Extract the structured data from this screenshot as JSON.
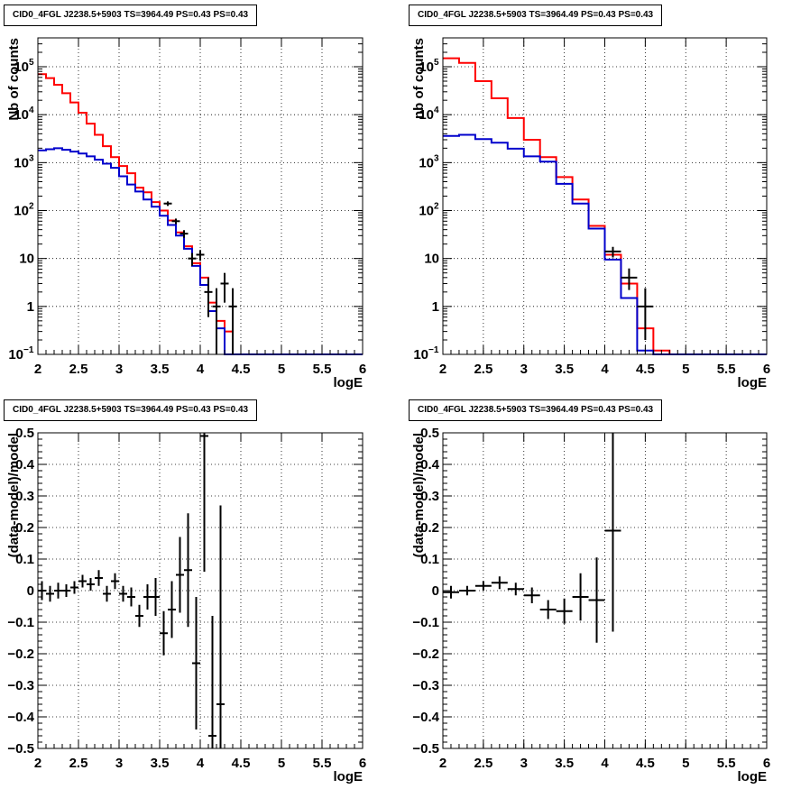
{
  "colors": {
    "data": "#000000",
    "model_total": "#ff0000",
    "model_component": "#0000cc",
    "grid": "#000000"
  },
  "chart_data": [
    {
      "type": "line",
      "title": "CID0_4FGL J2238.5+5903 TS=3964.49 PS=0.43 PS=0.43",
      "xlabel": "logE",
      "ylabel": "Nb of counts",
      "xlim": [
        2,
        6
      ],
      "ylim": [
        0.1,
        400000
      ],
      "log_y": true,
      "grid": true,
      "x_ticks": [
        "2",
        "2.5",
        "3",
        "3.5",
        "4",
        "4.5",
        "5",
        "5.5",
        "6"
      ],
      "y_ticks": [
        {
          "value": 0.1,
          "label": "10",
          "exp": "−1"
        },
        {
          "value": 1,
          "label": "1",
          "exp": ""
        },
        {
          "value": 10,
          "label": "10",
          "exp": ""
        },
        {
          "value": 100,
          "label": "10",
          "exp": "2"
        },
        {
          "value": 1000,
          "label": "10",
          "exp": "3"
        },
        {
          "value": 10000,
          "label": "10",
          "exp": "4"
        },
        {
          "value": 100000,
          "label": "10",
          "exp": "5"
        }
      ],
      "bin_edges": [
        2.0,
        2.1,
        2.2,
        2.3,
        2.4,
        2.5,
        2.6,
        2.7,
        2.8,
        2.9,
        3.0,
        3.1,
        3.2,
        3.3,
        3.4,
        3.5,
        3.6,
        3.7,
        3.8,
        3.9,
        4.0,
        4.1,
        4.2,
        4.3,
        4.4,
        4.5,
        4.6,
        4.7,
        4.8,
        4.9,
        5.0,
        5.1,
        5.2,
        5.3,
        5.4,
        5.5,
        5.6,
        5.7,
        5.8,
        5.9,
        6.0
      ],
      "series": [
        {
          "name": "model total",
          "color": "#ff0000",
          "values": [
            70000,
            58000,
            42000,
            28000,
            18000,
            11000,
            6500,
            3800,
            2200,
            1300,
            850,
            600,
            300,
            240,
            150,
            100,
            62,
            35,
            18,
            8,
            4,
            1.2,
            0.5,
            0.3,
            0.1,
            0.1,
            0.1,
            0.1,
            0.1,
            0.1,
            0.1,
            0.1,
            0.1,
            0.1,
            0.1,
            0.1,
            0.1,
            0.1,
            0.1,
            0.1
          ]
        },
        {
          "name": "model component",
          "color": "#0000cc",
          "values": [
            1800,
            1900,
            2000,
            1850,
            1700,
            1550,
            1350,
            1150,
            950,
            780,
            520,
            350,
            250,
            170,
            120,
            78,
            50,
            30,
            16,
            7,
            2.8,
            0.8,
            0.35,
            0.1,
            0.1,
            0.1,
            0.1,
            0.1,
            0.1,
            0.1,
            0.1,
            0.1,
            0.1,
            0.1,
            0.1,
            0.1,
            0.1,
            0.1,
            0.1,
            0.1
          ]
        }
      ],
      "points": [
        {
          "x": 3.6,
          "y": 140,
          "lo": 125,
          "hi": 155
        },
        {
          "x": 3.7,
          "y": 60,
          "lo": 52,
          "hi": 68
        },
        {
          "x": 3.8,
          "y": 33,
          "lo": 27,
          "hi": 39
        },
        {
          "x": 3.9,
          "y": 10,
          "lo": 7,
          "hi": 13
        },
        {
          "x": 4.0,
          "y": 12,
          "lo": 9,
          "hi": 15
        },
        {
          "x": 4.1,
          "y": 2,
          "lo": 0.6,
          "hi": 4
        },
        {
          "x": 4.2,
          "y": 1,
          "lo": 0.1,
          "hi": 2.4
        },
        {
          "x": 4.3,
          "y": 3,
          "lo": 1.2,
          "hi": 5
        },
        {
          "x": 4.4,
          "y": 1,
          "lo": 0.1,
          "hi": 2.4
        }
      ]
    },
    {
      "type": "line",
      "title": "CID0_4FGL J2238.5+5903 TS=3964.49 PS=0.43 PS=0.43",
      "xlabel": "logE",
      "ylabel": "nb of counts",
      "xlim": [
        2,
        6
      ],
      "ylim": [
        0.1,
        400000
      ],
      "log_y": true,
      "grid": true,
      "x_ticks": [
        "2",
        "2.5",
        "3",
        "3.5",
        "4",
        "4.5",
        "5",
        "5.5",
        "6"
      ],
      "y_ticks": [
        {
          "value": 0.1,
          "label": "10",
          "exp": "−1"
        },
        {
          "value": 1,
          "label": "1",
          "exp": ""
        },
        {
          "value": 10,
          "label": "10",
          "exp": ""
        },
        {
          "value": 100,
          "label": "10",
          "exp": "2"
        },
        {
          "value": 1000,
          "label": "10",
          "exp": "3"
        },
        {
          "value": 10000,
          "label": "10",
          "exp": "4"
        },
        {
          "value": 100000,
          "label": "10",
          "exp": "5"
        }
      ],
      "bin_edges": [
        2.0,
        2.2,
        2.4,
        2.6,
        2.8,
        3.0,
        3.2,
        3.4,
        3.6,
        3.8,
        4.0,
        4.2,
        4.4,
        4.6,
        4.8,
        5.0,
        5.2,
        5.4,
        5.6,
        5.8,
        6.0
      ],
      "series": [
        {
          "name": "model total",
          "color": "#ff0000",
          "values": [
            150000,
            120000,
            50000,
            22000,
            8500,
            3000,
            1300,
            500,
            170,
            48,
            12,
            3,
            0.35,
            0.12,
            0.1,
            0.1,
            0.1,
            0.1,
            0.1,
            0.1
          ]
        },
        {
          "name": "model component",
          "color": "#0000cc",
          "values": [
            3600,
            3800,
            3100,
            2600,
            1950,
            1350,
            1050,
            360,
            140,
            42,
            9.5,
            1.5,
            0.12,
            0.1,
            0.1,
            0.1,
            0.1,
            0.1,
            0.1,
            0.1
          ]
        }
      ],
      "points": [
        {
          "x": 4.1,
          "y": 14,
          "lo": 10.5,
          "hi": 17.5
        },
        {
          "x": 4.3,
          "y": 4,
          "lo": 2.2,
          "hi": 6.2
        },
        {
          "x": 4.5,
          "y": 1,
          "lo": 0.2,
          "hi": 2.4
        }
      ]
    },
    {
      "type": "scatter",
      "title": "CID0_4FGL J2238.5+5903 TS=3964.49 PS=0.43 PS=0.43",
      "xlabel": "logE",
      "ylabel": "(data-model)/model",
      "xlim": [
        2,
        6
      ],
      "ylim": [
        -0.5,
        0.5
      ],
      "log_y": false,
      "grid": true,
      "x_ticks": [
        "2",
        "2.5",
        "3",
        "3.5",
        "4",
        "4.5",
        "5",
        "5.5",
        "6"
      ],
      "y_ticks": [
        {
          "value": -0.5,
          "label": "−0.5",
          "exp": ""
        },
        {
          "value": -0.4,
          "label": "−0.4",
          "exp": ""
        },
        {
          "value": -0.3,
          "label": "−0.3",
          "exp": ""
        },
        {
          "value": -0.2,
          "label": "−0.2",
          "exp": ""
        },
        {
          "value": -0.1,
          "label": "−0.1",
          "exp": ""
        },
        {
          "value": 0,
          "label": "0",
          "exp": ""
        },
        {
          "value": 0.1,
          "label": "0.1",
          "exp": ""
        },
        {
          "value": 0.2,
          "label": "0.2",
          "exp": ""
        },
        {
          "value": 0.3,
          "label": "0.3",
          "exp": ""
        },
        {
          "value": 0.4,
          "label": "0.4",
          "exp": ""
        },
        {
          "value": 0.5,
          "label": "0.5",
          "exp": ""
        }
      ],
      "xhalf": 0.05,
      "points": [
        {
          "x": 2.05,
          "y": 0.0,
          "err": 0.03
        },
        {
          "x": 2.15,
          "y": -0.01,
          "err": 0.025
        },
        {
          "x": 2.25,
          "y": 0.0,
          "err": 0.025
        },
        {
          "x": 2.35,
          "y": 0.0,
          "err": 0.02
        },
        {
          "x": 2.45,
          "y": 0.01,
          "err": 0.02
        },
        {
          "x": 2.55,
          "y": 0.03,
          "err": 0.02
        },
        {
          "x": 2.65,
          "y": 0.02,
          "err": 0.02
        },
        {
          "x": 2.75,
          "y": 0.04,
          "err": 0.025
        },
        {
          "x": 2.85,
          "y": -0.01,
          "err": 0.025
        },
        {
          "x": 2.95,
          "y": 0.03,
          "err": 0.025
        },
        {
          "x": 3.05,
          "y": -0.01,
          "err": 0.025
        },
        {
          "x": 3.15,
          "y": -0.02,
          "err": 0.03
        },
        {
          "x": 3.25,
          "y": -0.08,
          "err": 0.035
        },
        {
          "x": 3.35,
          "y": -0.02,
          "err": 0.04
        },
        {
          "x": 3.45,
          "y": -0.02,
          "err": 0.06
        },
        {
          "x": 3.55,
          "y": -0.135,
          "err": 0.07
        },
        {
          "x": 3.65,
          "y": -0.06,
          "err": 0.09
        },
        {
          "x": 3.75,
          "y": 0.05,
          "err": 0.12
        },
        {
          "x": 3.85,
          "y": 0.065,
          "err": 0.18
        },
        {
          "x": 3.95,
          "y": -0.23,
          "err": 0.21
        },
        {
          "x": 4.05,
          "y": 0.49,
          "err": 0.43
        },
        {
          "x": 4.15,
          "y": -0.46,
          "err": 0.38
        },
        {
          "x": 4.25,
          "y": -0.36,
          "err": 0.63
        }
      ]
    },
    {
      "type": "scatter",
      "title": "CID0_4FGL J2238.5+5903 TS=3964.49 PS=0.43 PS=0.43",
      "xlabel": "logE",
      "ylabel": "(data-model)/model",
      "xlim": [
        2,
        6
      ],
      "ylim": [
        -0.5,
        0.5
      ],
      "log_y": false,
      "grid": true,
      "x_ticks": [
        "2",
        "2.5",
        "3",
        "3.5",
        "4",
        "4.5",
        "5",
        "5.5",
        "6"
      ],
      "y_ticks": [
        {
          "value": -0.5,
          "label": "−0.5",
          "exp": ""
        },
        {
          "value": -0.4,
          "label": "−0.4",
          "exp": ""
        },
        {
          "value": -0.3,
          "label": "−0.3",
          "exp": ""
        },
        {
          "value": -0.2,
          "label": "−0.2",
          "exp": ""
        },
        {
          "value": -0.1,
          "label": "−0.1",
          "exp": ""
        },
        {
          "value": 0,
          "label": "0",
          "exp": ""
        },
        {
          "value": 0.1,
          "label": "0.1",
          "exp": ""
        },
        {
          "value": 0.2,
          "label": "0.2",
          "exp": ""
        },
        {
          "value": 0.3,
          "label": "0.3",
          "exp": ""
        },
        {
          "value": 0.4,
          "label": "0.4",
          "exp": ""
        },
        {
          "value": 0.5,
          "label": "0.5",
          "exp": ""
        }
      ],
      "xhalf": 0.1,
      "points": [
        {
          "x": 2.1,
          "y": -0.005,
          "err": 0.02
        },
        {
          "x": 2.3,
          "y": 0.0,
          "err": 0.015
        },
        {
          "x": 2.5,
          "y": 0.015,
          "err": 0.015
        },
        {
          "x": 2.7,
          "y": 0.025,
          "err": 0.02
        },
        {
          "x": 2.9,
          "y": 0.005,
          "err": 0.02
        },
        {
          "x": 3.1,
          "y": -0.015,
          "err": 0.025
        },
        {
          "x": 3.3,
          "y": -0.06,
          "err": 0.03
        },
        {
          "x": 3.5,
          "y": -0.065,
          "err": 0.04
        },
        {
          "x": 3.7,
          "y": -0.02,
          "err": 0.075
        },
        {
          "x": 3.9,
          "y": -0.03,
          "err": 0.135
        },
        {
          "x": 4.1,
          "y": 0.19,
          "err": 0.32
        }
      ]
    }
  ]
}
